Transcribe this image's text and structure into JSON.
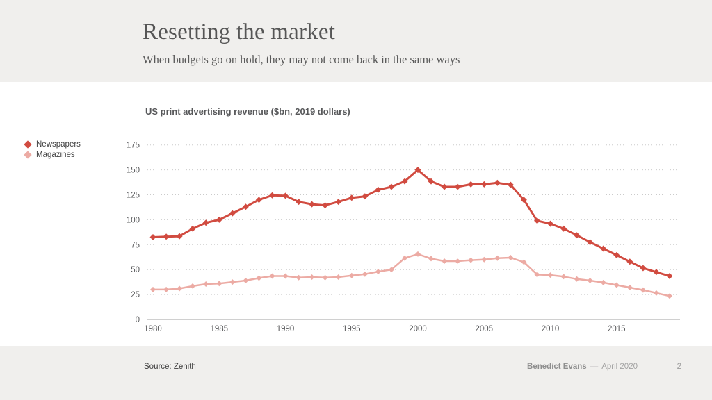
{
  "slide": {
    "title": "Resetting the market",
    "subtitle": "When budgets go on hold, they may not come back in the same ways",
    "footer": {
      "source": "Source: Zenith",
      "author": "Benedict Evans",
      "separator": "—",
      "date": "April 2020",
      "page_number": "2"
    }
  },
  "colors": {
    "band_background": "#f0efed",
    "newspapers_red": "#d14b40",
    "magazines_pink": "#ecaba4",
    "gridline_gray": "#cbcbcb",
    "axis_gray": "#b5b5b5"
  },
  "chart_data": {
    "type": "line",
    "title": "US print advertising revenue ($bn, 2019 dollars)",
    "xlabel": "",
    "ylabel": "",
    "x": [
      1980,
      1981,
      1982,
      1983,
      1984,
      1985,
      1986,
      1987,
      1988,
      1989,
      1990,
      1991,
      1992,
      1993,
      1994,
      1995,
      1996,
      1997,
      1998,
      1999,
      2000,
      2001,
      2002,
      2003,
      2004,
      2005,
      2006,
      2007,
      2008,
      2009,
      2010,
      2011,
      2012,
      2013,
      2014,
      2015,
      2016,
      2017,
      2018,
      2019
    ],
    "series": [
      {
        "name": "Newspapers",
        "color": "#d14b40",
        "marker": "diamond",
        "values": [
          82.5,
          83,
          83.5,
          91,
          97,
          100,
          106.5,
          113,
          120,
          124.5,
          124,
          118,
          115.5,
          114.5,
          118,
          122,
          123.5,
          130,
          133,
          138.5,
          150,
          138.5,
          133,
          133,
          135.5,
          135.5,
          137,
          135,
          120,
          99,
          96,
          91,
          84.5,
          77.5,
          71,
          64.5,
          58,
          51.5,
          47.5,
          43.5
        ]
      },
      {
        "name": "Magazines",
        "color": "#ecaba4",
        "marker": "diamond",
        "values": [
          30,
          30,
          31,
          33.5,
          35.5,
          36,
          37.5,
          39,
          41.5,
          43.5,
          43.5,
          42,
          42.5,
          42,
          42.5,
          44,
          45.5,
          48,
          50,
          61.5,
          65.5,
          61,
          58.5,
          58.5,
          59.5,
          60,
          61.5,
          62,
          57.5,
          45,
          44.5,
          43,
          40.5,
          39,
          37,
          34.5,
          32,
          29.5,
          26.5,
          23.5
        ]
      }
    ],
    "ylim": [
      0,
      175
    ],
    "yticks": [
      0,
      25,
      50,
      75,
      100,
      125,
      150,
      175
    ],
    "xticks": [
      1980,
      1985,
      1990,
      1995,
      2000,
      2005,
      2010,
      2015
    ],
    "grid": "horizontal-dotted",
    "legend_position": "left"
  }
}
